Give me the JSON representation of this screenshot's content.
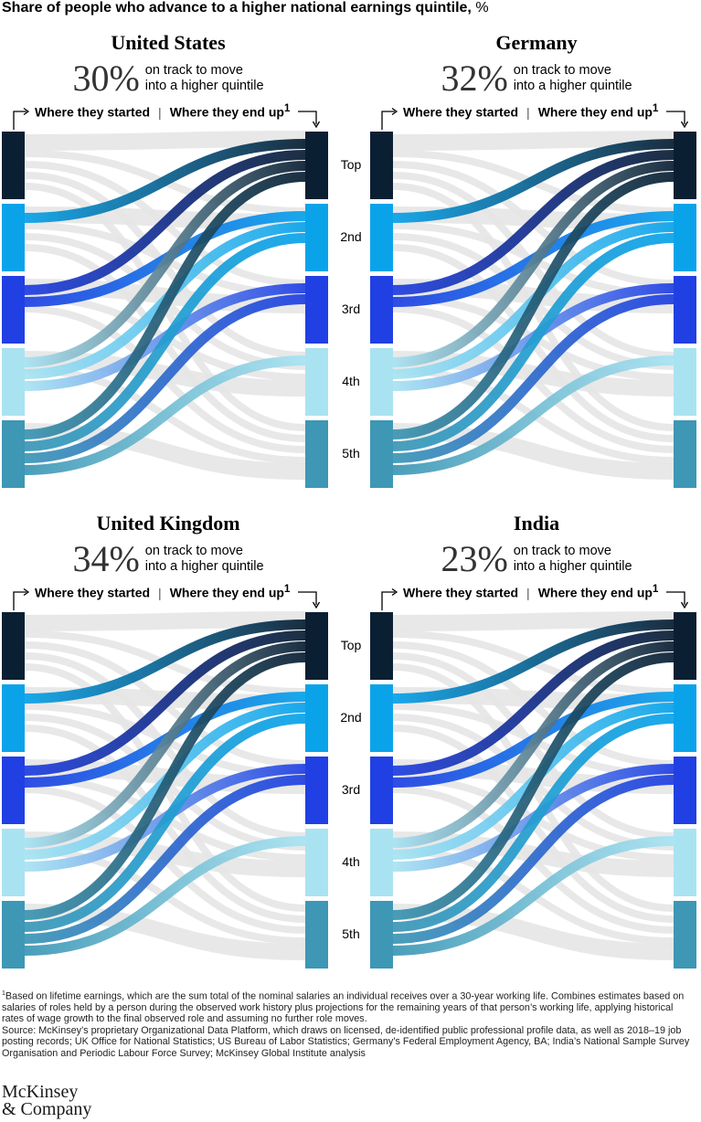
{
  "title": "Share of people who advance to a higher national earnings quintile,",
  "title_unit": "%",
  "flow_header": {
    "started": "Where they started",
    "separator": "|",
    "end": "Where they end up",
    "end_sup": "1"
  },
  "stat_text_line1": "on track to move",
  "stat_text_line2": "into a higher quintile",
  "quintile_labels": [
    "Top",
    "2nd",
    "3rd",
    "4th",
    "5th"
  ],
  "colors": {
    "quintiles": [
      "#0b1f33",
      "#0aa3ea",
      "#2140e3",
      "#a9e3f2",
      "#3d97b5"
    ],
    "stay_flow": "#e5e5e5"
  },
  "chart_data": [
    {
      "type": "sankey",
      "title": "United States",
      "share_advancing_pct": "30%",
      "levels": [
        "Top",
        "2nd",
        "3rd",
        "4th",
        "5th"
      ],
      "upward_flows": [
        {
          "from": "2nd",
          "to": "Top"
        },
        {
          "from": "3rd",
          "to": "Top"
        },
        {
          "from": "3rd",
          "to": "2nd"
        },
        {
          "from": "4th",
          "to": "Top"
        },
        {
          "from": "4th",
          "to": "2nd"
        },
        {
          "from": "4th",
          "to": "3rd"
        },
        {
          "from": "5th",
          "to": "Top"
        },
        {
          "from": "5th",
          "to": "2nd"
        },
        {
          "from": "5th",
          "to": "3rd"
        },
        {
          "from": "5th",
          "to": "4th"
        }
      ]
    },
    {
      "type": "sankey",
      "title": "Germany",
      "share_advancing_pct": "32%",
      "levels": [
        "Top",
        "2nd",
        "3rd",
        "4th",
        "5th"
      ],
      "upward_flows": [
        {
          "from": "2nd",
          "to": "Top"
        },
        {
          "from": "3rd",
          "to": "Top"
        },
        {
          "from": "3rd",
          "to": "2nd"
        },
        {
          "from": "4th",
          "to": "Top"
        },
        {
          "from": "4th",
          "to": "2nd"
        },
        {
          "from": "4th",
          "to": "3rd"
        },
        {
          "from": "5th",
          "to": "Top"
        },
        {
          "from": "5th",
          "to": "2nd"
        },
        {
          "from": "5th",
          "to": "3rd"
        },
        {
          "from": "5th",
          "to": "4th"
        }
      ]
    },
    {
      "type": "sankey",
      "title": "United Kingdom",
      "share_advancing_pct": "34%",
      "levels": [
        "Top",
        "2nd",
        "3rd",
        "4th",
        "5th"
      ],
      "upward_flows": [
        {
          "from": "2nd",
          "to": "Top"
        },
        {
          "from": "3rd",
          "to": "Top"
        },
        {
          "from": "3rd",
          "to": "2nd"
        },
        {
          "from": "4th",
          "to": "Top"
        },
        {
          "from": "4th",
          "to": "2nd"
        },
        {
          "from": "4th",
          "to": "3rd"
        },
        {
          "from": "5th",
          "to": "Top"
        },
        {
          "from": "5th",
          "to": "2nd"
        },
        {
          "from": "5th",
          "to": "3rd"
        },
        {
          "from": "5th",
          "to": "4th"
        }
      ]
    },
    {
      "type": "sankey",
      "title": "India",
      "share_advancing_pct": "23%",
      "levels": [
        "Top",
        "2nd",
        "3rd",
        "4th",
        "5th"
      ],
      "upward_flows": [
        {
          "from": "2nd",
          "to": "Top"
        },
        {
          "from": "3rd",
          "to": "Top"
        },
        {
          "from": "3rd",
          "to": "2nd"
        },
        {
          "from": "4th",
          "to": "Top"
        },
        {
          "from": "4th",
          "to": "2nd"
        },
        {
          "from": "4th",
          "to": "3rd"
        },
        {
          "from": "5th",
          "to": "Top"
        },
        {
          "from": "5th",
          "to": "2nd"
        },
        {
          "from": "5th",
          "to": "3rd"
        },
        {
          "from": "5th",
          "to": "4th"
        }
      ]
    }
  ],
  "footnote": {
    "sup": "1",
    "text": "Based on lifetime earnings, which are the sum total of the nominal salaries an individual receives over a 30-year working life. Combines estimates based on salaries of roles held by a person during the observed work history plus projections for the remaining years of that person’s working life, applying historical rates of wage growth to the final observed role and assuming no further role moves.",
    "source": "Source: McKinsey’s proprietary Organizational Data Platform, which draws on licensed, de-identified public professional profile data, as well as 2018–19 job posting records; UK Office for National Statistics; US Bureau of Labor Statistics; Germany’s Federal Employment Agency, BA; India’s National Sample Survey Organisation and Periodic Labour Force Survey; McKinsey Global Institute analysis"
  },
  "logo": {
    "line1": "McKinsey",
    "line2": "& Company"
  }
}
